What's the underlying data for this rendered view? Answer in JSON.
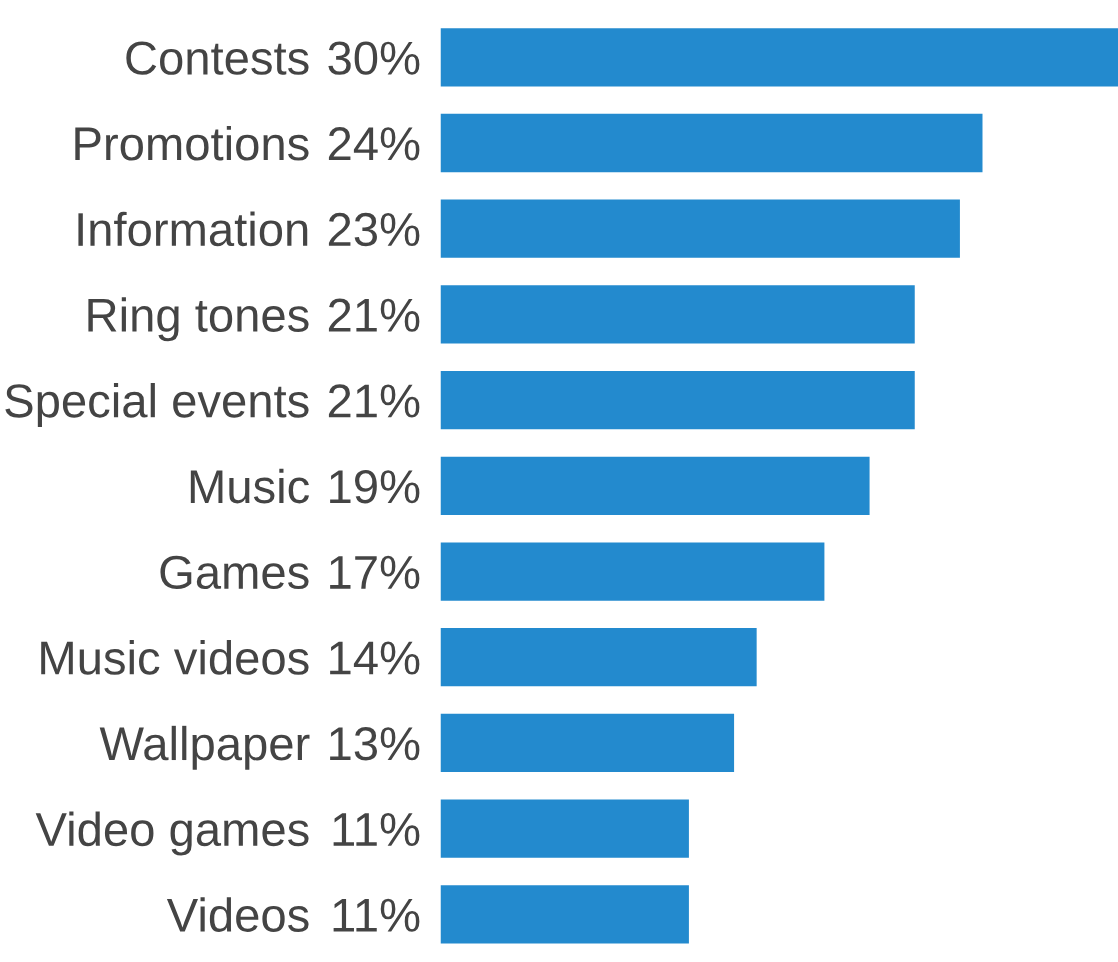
{
  "chart_data": {
    "type": "bar",
    "orientation": "horizontal",
    "categories": [
      "Contests",
      "Promotions",
      "Information",
      "Ring tones",
      "Special events",
      "Music",
      "Games",
      "Music videos",
      "Wallpaper",
      "Video games",
      "Videos"
    ],
    "values": [
      30,
      24,
      23,
      21,
      21,
      19,
      17,
      14,
      13,
      11,
      11
    ],
    "value_labels": [
      "30%",
      "24%",
      "23%",
      "21%",
      "21%",
      "19%",
      "17%",
      " 14%",
      "13%",
      " 11%",
      "11%"
    ],
    "color": "#238ace",
    "grid": false,
    "legend": false
  }
}
